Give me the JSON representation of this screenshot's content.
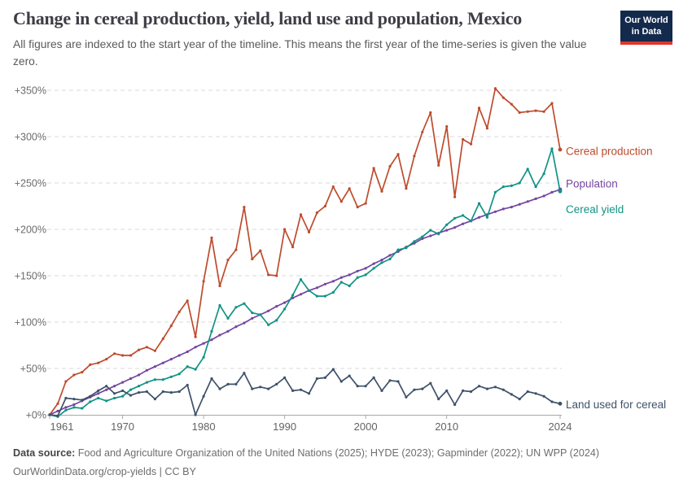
{
  "header": {
    "title": "Change in cereal production, yield, land use and population, Mexico",
    "subtitle": "All figures are indexed to the start year of the timeline. This means the first year of the time-series is given the value zero."
  },
  "logo": {
    "line1": "Our World",
    "line2": "in Data",
    "bg_color": "#142a4d",
    "bar_color": "#e0352c"
  },
  "chart_data": {
    "type": "line",
    "title": "Change in cereal production, yield, land use and population, Mexico",
    "grid": "horizontal-dashed",
    "legend_position": "right-end-labels",
    "ylim": [
      -5,
      355
    ],
    "xlim": [
      1961,
      2024
    ],
    "x_ticks": [
      1961,
      1970,
      1980,
      1990,
      2000,
      2010,
      2024
    ],
    "x_tick_labels": [
      "1961",
      "1970",
      "1980",
      "1990",
      "2000",
      "2010",
      "2024"
    ],
    "y_ticks": [
      0,
      50,
      100,
      150,
      200,
      250,
      300,
      350
    ],
    "y_tick_labels": [
      "+0%",
      "+50%",
      "+100%",
      "+150%",
      "+200%",
      "+250%",
      "+300%",
      "+350%"
    ],
    "years": [
      1961,
      1962,
      1963,
      1964,
      1965,
      1966,
      1967,
      1968,
      1969,
      1970,
      1971,
      1972,
      1973,
      1974,
      1975,
      1976,
      1977,
      1978,
      1979,
      1980,
      1981,
      1982,
      1983,
      1984,
      1985,
      1986,
      1987,
      1988,
      1989,
      1990,
      1991,
      1992,
      1993,
      1994,
      1995,
      1996,
      1997,
      1998,
      1999,
      2000,
      2001,
      2002,
      2003,
      2004,
      2005,
      2006,
      2007,
      2008,
      2009,
      2010,
      2011,
      2012,
      2013,
      2014,
      2015,
      2016,
      2017,
      2018,
      2019,
      2020,
      2021,
      2022,
      2023,
      2024
    ],
    "series": [
      {
        "name": "Cereal production",
        "color": "#be4b2d",
        "values": [
          0,
          12,
          36,
          43,
          46,
          54,
          56,
          60,
          66,
          64,
          64,
          70,
          73,
          69,
          82,
          96,
          111,
          123,
          84,
          144,
          191,
          139,
          167,
          178,
          224,
          168,
          177,
          151,
          150,
          200,
          181,
          216,
          197,
          218,
          225,
          246,
          230,
          244,
          224,
          228,
          266,
          241,
          268,
          281,
          244,
          279,
          305,
          326,
          269,
          311,
          235,
          297,
          292,
          331,
          309,
          352,
          342,
          335,
          326,
          327,
          328,
          327,
          336,
          286
        ]
      },
      {
        "name": "Population",
        "color": "#7545a1",
        "values": [
          0,
          4,
          8,
          11,
          15,
          19,
          23,
          27,
          31,
          35,
          39,
          43,
          48,
          52,
          56,
          60,
          64,
          68,
          73,
          77,
          81,
          86,
          90,
          95,
          99,
          104,
          108,
          112,
          117,
          121,
          126,
          130,
          134,
          137,
          141,
          144,
          148,
          151,
          155,
          158,
          163,
          167,
          172,
          176,
          181,
          185,
          190,
          193,
          196,
          199,
          202,
          206,
          209,
          213,
          216,
          219,
          222,
          224,
          227,
          230,
          233,
          236,
          240,
          243
        ]
      },
      {
        "name": "Cereal yield",
        "color": "#109384",
        "values": [
          0,
          -2,
          5,
          8,
          7,
          14,
          18,
          15,
          18,
          20,
          27,
          31,
          35,
          38,
          38,
          41,
          44,
          52,
          49,
          62,
          90,
          118,
          104,
          116,
          120,
          110,
          108,
          97,
          102,
          114,
          129,
          146,
          134,
          128,
          128,
          132,
          143,
          139,
          148,
          151,
          158,
          164,
          168,
          178,
          180,
          187,
          192,
          199,
          195,
          205,
          212,
          215,
          209,
          228,
          213,
          240,
          246,
          247,
          250,
          265,
          246,
          260,
          287,
          241
        ]
      },
      {
        "name": "Land used for cereal",
        "color": "#3e5169",
        "values": [
          0,
          -1,
          18,
          17,
          16,
          20,
          26,
          31,
          23,
          26,
          21,
          24,
          25,
          17,
          25,
          24,
          25,
          32,
          0,
          20,
          39,
          28,
          33,
          33,
          45,
          28,
          30,
          28,
          33,
          40,
          26,
          27,
          23,
          39,
          40,
          49,
          36,
          42,
          31,
          31,
          40,
          26,
          37,
          36,
          19,
          27,
          28,
          34,
          17,
          26,
          11,
          26,
          25,
          31,
          28,
          30,
          27,
          22,
          17,
          25,
          23,
          20,
          14,
          12
        ]
      }
    ]
  },
  "footer": {
    "source_label": "Data source:",
    "source_text": "Food and Agriculture Organization of the United Nations (2025); HYDE (2023); Gapminder (2022); UN WPP (2024)",
    "link_line": "OurWorldinData.org/crop-yields | CC BY"
  }
}
